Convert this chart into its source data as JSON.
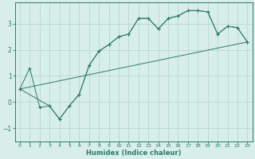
{
  "title": "",
  "xlabel": "Humidex (Indice chaleur)",
  "bg_color": "#d8eeea",
  "line_color": "#2d7a6a",
  "grid_color": "#b0d4cc",
  "xlim": [
    -0.5,
    23.5
  ],
  "ylim": [
    -1.5,
    3.8
  ],
  "xticks": [
    0,
    1,
    2,
    3,
    4,
    5,
    6,
    7,
    8,
    9,
    10,
    11,
    12,
    13,
    14,
    15,
    16,
    17,
    18,
    19,
    20,
    21,
    22,
    23
  ],
  "yticks": [
    -1,
    0,
    1,
    2,
    3
  ],
  "series1": {
    "x": [
      0,
      1,
      2,
      3,
      4,
      5,
      6,
      7,
      8,
      9,
      10,
      11,
      12,
      13,
      14,
      15,
      16,
      17,
      18,
      19,
      20,
      21,
      22,
      23
    ],
    "y": [
      0.5,
      1.3,
      -0.2,
      -0.15,
      -0.65,
      -0.15,
      0.3,
      1.4,
      1.95,
      2.2,
      2.5,
      2.6,
      3.2,
      3.2,
      2.8,
      3.2,
      3.3,
      3.5,
      3.5,
      3.45,
      2.6,
      2.9,
      2.85,
      2.3
    ]
  },
  "series2": {
    "x": [
      0,
      3,
      4,
      5,
      6,
      7,
      8,
      9,
      10,
      11,
      12,
      13,
      14,
      15,
      16,
      17,
      18,
      19,
      20,
      21,
      22,
      23
    ],
    "y": [
      0.5,
      -0.15,
      -0.65,
      -0.15,
      0.3,
      1.4,
      1.95,
      2.2,
      2.5,
      2.6,
      3.2,
      3.2,
      2.8,
      3.2,
      3.3,
      3.5,
      3.5,
      3.45,
      2.6,
      2.9,
      2.85,
      2.3
    ]
  },
  "series3": {
    "x": [
      0,
      23
    ],
    "y": [
      0.5,
      2.3
    ]
  }
}
